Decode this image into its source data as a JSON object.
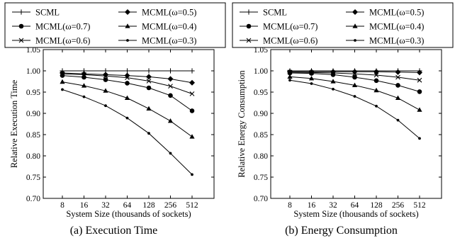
{
  "captions": [
    "(a) Execution Time",
    "(b) Energy Consumption"
  ],
  "chart_data": [
    {
      "type": "line",
      "title": "",
      "xlabel": "System Size (thousands of sockets)",
      "ylabel": "Relative Execution Time",
      "categories": [
        "8",
        "16",
        "32",
        "64",
        "128",
        "256",
        "512"
      ],
      "ylim": [
        0.7,
        1.05
      ],
      "yticks": [
        "0.70",
        "0.75",
        "0.80",
        "0.85",
        "0.90",
        "0.95",
        "1.00",
        "1.05"
      ],
      "grid": false,
      "legend_position": "top",
      "color": "#000000",
      "series": [
        {
          "name": "SCML",
          "marker": "plus",
          "values": [
            1.0,
            1.0,
            1.0,
            1.0,
            1.0,
            1.0,
            1.0
          ]
        },
        {
          "name": "MCML(ω=0.5)",
          "marker": "diamond",
          "values": [
            0.995,
            0.993,
            0.991,
            0.989,
            0.986,
            0.981,
            0.972
          ]
        },
        {
          "name": "MCML(ω=0.7)",
          "marker": "circle",
          "values": [
            0.989,
            0.985,
            0.979,
            0.971,
            0.96,
            0.942,
            0.906
          ]
        },
        {
          "name": "MCML(ω=0.4)",
          "marker": "triangle",
          "values": [
            0.974,
            0.965,
            0.953,
            0.936,
            0.911,
            0.882,
            0.845
          ]
        },
        {
          "name": "MCML(ω=0.6)",
          "marker": "x",
          "values": [
            0.993,
            0.991,
            0.988,
            0.984,
            0.976,
            0.964,
            0.946
          ]
        },
        {
          "name": "MCML(ω=0.3)",
          "marker": "dot",
          "values": [
            0.956,
            0.939,
            0.918,
            0.889,
            0.853,
            0.806,
            0.756
          ]
        }
      ]
    },
    {
      "type": "line",
      "title": "",
      "xlabel": "System Size (thousands of sockets)",
      "ylabel": "Relative Energy Consumption",
      "categories": [
        "8",
        "16",
        "32",
        "64",
        "128",
        "256",
        "512"
      ],
      "ylim": [
        0.7,
        1.05
      ],
      "yticks": [
        "0.70",
        "0.75",
        "0.80",
        "0.85",
        "0.90",
        "0.95",
        "1.00",
        "1.05"
      ],
      "grid": false,
      "legend_position": "top",
      "color": "#000000",
      "series": [
        {
          "name": "SCML",
          "marker": "plus",
          "values": [
            1.0,
            1.0,
            1.0,
            1.0,
            1.0,
            1.0,
            1.0
          ]
        },
        {
          "name": "MCML(ω=0.5)",
          "marker": "diamond",
          "values": [
            0.998,
            0.998,
            0.998,
            0.998,
            0.998,
            0.997,
            0.996
          ]
        },
        {
          "name": "MCML(ω=0.7)",
          "marker": "circle",
          "values": [
            0.995,
            0.994,
            0.991,
            0.985,
            0.977,
            0.966,
            0.951
          ]
        },
        {
          "name": "MCML(ω=0.4)",
          "marker": "triangle",
          "values": [
            0.986,
            0.982,
            0.975,
            0.966,
            0.954,
            0.936,
            0.908
          ]
        },
        {
          "name": "MCML(ω=0.6)",
          "marker": "x",
          "values": [
            0.997,
            0.996,
            0.995,
            0.993,
            0.99,
            0.985,
            0.978
          ]
        },
        {
          "name": "MCML(ω=0.3)",
          "marker": "dot",
          "values": [
            0.978,
            0.97,
            0.957,
            0.94,
            0.917,
            0.884,
            0.841
          ]
        }
      ]
    }
  ]
}
